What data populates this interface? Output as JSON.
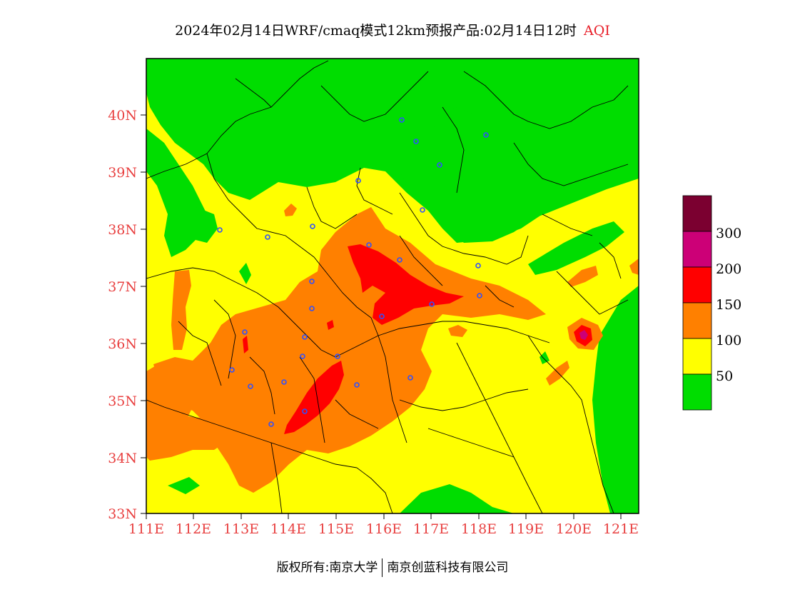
{
  "title": {
    "main": "2024年02月14日WRF/cmaq模式12km预报产品:02月14日12时",
    "tag": "AQI"
  },
  "axes": {
    "lat_labels": [
      "40N",
      "39N",
      "38N",
      "37N",
      "36N",
      "35N",
      "34N",
      "33N"
    ],
    "lon_labels": [
      "111E",
      "112E",
      "113E",
      "114E",
      "115E",
      "116E",
      "117E",
      "118E",
      "119E",
      "120E",
      "121E"
    ]
  },
  "legend": {
    "levels": [
      {
        "label": "300",
        "color": "#7b0030"
      },
      {
        "label": "200",
        "color": "#cc0077"
      },
      {
        "label": "150",
        "color": "#ff0000"
      },
      {
        "label": "100",
        "color": "#ff8000"
      },
      {
        "label": "50",
        "color": "#ffff00"
      },
      {
        "label": "",
        "color": "#00dd00"
      }
    ],
    "tick_labels": [
      "300",
      "200",
      "150",
      "100",
      "50"
    ]
  },
  "colors": {
    "good": "#00dd00",
    "moderate": "#ffff00",
    "sensitive": "#ff8000",
    "unhealthy": "#ff0000",
    "very_unhealthy": "#cc0077",
    "hazardous": "#7b0030",
    "station": "#3050ff"
  },
  "copyright": {
    "left": "版权所有:南京大学",
    "right": "南京创蓝科技有限公司"
  }
}
